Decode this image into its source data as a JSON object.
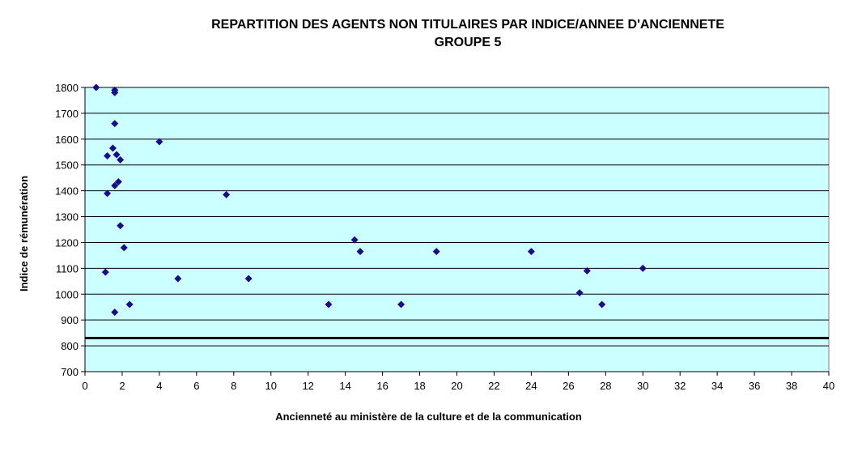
{
  "chart_data": {
    "type": "scatter",
    "title_line1": "REPARTITION DES AGENTS NON TITULAIRES PAR INDICE/ANNEE D'ANCIENNETE",
    "title_line2": "GROUPE 5",
    "xlabel": "Ancienneté au ministère de la culture et de la communication",
    "ylabel": "Indice de rémunération",
    "xlim": [
      0,
      40
    ],
    "ylim": [
      700,
      1800
    ],
    "x_ticks": [
      0,
      2,
      4,
      6,
      8,
      10,
      12,
      14,
      16,
      18,
      20,
      22,
      24,
      26,
      28,
      30,
      32,
      34,
      36,
      38,
      40
    ],
    "y_ticks": [
      700,
      800,
      900,
      1000,
      1100,
      1200,
      1300,
      1400,
      1500,
      1600,
      1700,
      1800
    ],
    "grid": "horizontal",
    "plot_background": "#ccffff",
    "marker_color": "#1a0a8c",
    "reference_line": {
      "y": 830,
      "color": "#000000"
    },
    "points": [
      {
        "x": 0.6,
        "y": 1800
      },
      {
        "x": 1.6,
        "y": 1790
      },
      {
        "x": 1.6,
        "y": 1780
      },
      {
        "x": 1.6,
        "y": 1660
      },
      {
        "x": 4.0,
        "y": 1590
      },
      {
        "x": 1.5,
        "y": 1565
      },
      {
        "x": 1.2,
        "y": 1535
      },
      {
        "x": 1.7,
        "y": 1540
      },
      {
        "x": 1.9,
        "y": 1520
      },
      {
        "x": 1.8,
        "y": 1435
      },
      {
        "x": 1.6,
        "y": 1420
      },
      {
        "x": 1.2,
        "y": 1390
      },
      {
        "x": 7.6,
        "y": 1385
      },
      {
        "x": 1.9,
        "y": 1265
      },
      {
        "x": 14.5,
        "y": 1210
      },
      {
        "x": 2.1,
        "y": 1180
      },
      {
        "x": 14.8,
        "y": 1165
      },
      {
        "x": 18.9,
        "y": 1165
      },
      {
        "x": 24.0,
        "y": 1165
      },
      {
        "x": 30.0,
        "y": 1100
      },
      {
        "x": 1.1,
        "y": 1085
      },
      {
        "x": 27.0,
        "y": 1090
      },
      {
        "x": 5.0,
        "y": 1060
      },
      {
        "x": 8.8,
        "y": 1060
      },
      {
        "x": 26.6,
        "y": 1005
      },
      {
        "x": 2.4,
        "y": 960
      },
      {
        "x": 13.1,
        "y": 960
      },
      {
        "x": 17.0,
        "y": 960
      },
      {
        "x": 27.8,
        "y": 960
      },
      {
        "x": 1.6,
        "y": 930
      }
    ]
  }
}
